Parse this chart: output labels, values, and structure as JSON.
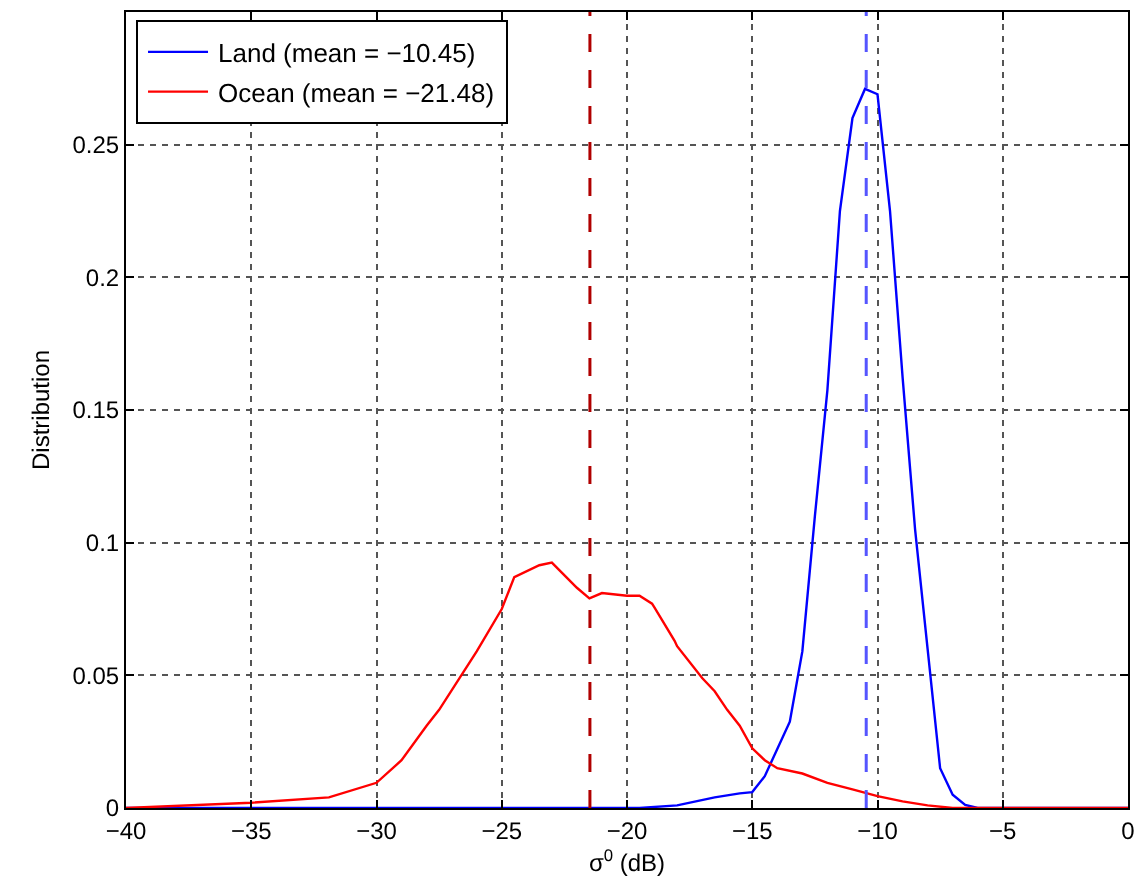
{
  "chart_data": {
    "type": "line",
    "xlabel": "σ$^{0}$ (dB)",
    "ylabel": "Distribution",
    "series": [
      {
        "name": "Land (mean = −10.45)",
        "color": "#0000ff",
        "x": [
          -40,
          -19.5,
          -18,
          -16.5,
          -15.5,
          -15,
          -14.5,
          -13.5,
          -13,
          -12.5,
          -12,
          -11.5,
          -11,
          -10.5,
          -10,
          -9.5,
          -9,
          -8.5,
          -8,
          -7.5,
          -7,
          -6.5,
          -6,
          0
        ],
        "values": [
          0,
          0,
          0.001,
          0.004,
          0.0055,
          0.006,
          0.012,
          0.0325,
          0.059,
          0.11,
          0.1575,
          0.225,
          0.26,
          0.271,
          0.269,
          0.225,
          0.1625,
          0.105,
          0.06,
          0.015,
          0.005,
          0.0012,
          0,
          0
        ]
      },
      {
        "name": "Ocean (mean = −21.48)",
        "color": "#ff0000",
        "x": [
          -40,
          -35,
          -31.9,
          -30,
          -29,
          -28,
          -27.5,
          -26,
          -25,
          -24.5,
          -23.5,
          -23,
          -22,
          -21.5,
          -21,
          -20,
          -19.5,
          -19,
          -18.9,
          -18.1,
          -18,
          -17,
          -16.5,
          -16,
          -15.5,
          -15,
          -14.5,
          -14,
          -13,
          -12,
          -11,
          -10,
          -9,
          -8,
          -7,
          0
        ],
        "values": [
          0,
          0.002,
          0.004,
          0.0095,
          0.018,
          0.031,
          0.037,
          0.059,
          0.075,
          0.087,
          0.0915,
          0.0925,
          0.083,
          0.079,
          0.081,
          0.08,
          0.08,
          0.077,
          0.0755,
          0.063,
          0.061,
          0.049,
          0.044,
          0.037,
          0.031,
          0.0225,
          0.018,
          0.015,
          0.013,
          0.0095,
          0.007,
          0.0045,
          0.0025,
          0.001,
          0,
          0
        ]
      }
    ],
    "ref_lines": [
      {
        "axis": "x",
        "value": -10.45,
        "color": "#5555ff",
        "line_style": "dashed"
      },
      {
        "axis": "x",
        "value": -21.48,
        "color": "#b00000",
        "line_style": "dashed"
      }
    ],
    "xlim": [
      -40,
      0
    ],
    "xticks": [
      {
        "value": -40,
        "label": "−40"
      },
      {
        "value": -35,
        "label": "−35"
      },
      {
        "value": -30,
        "label": "−30"
      },
      {
        "value": -25,
        "label": "−25"
      },
      {
        "value": -20,
        "label": "−20"
      },
      {
        "value": -15,
        "label": "−15"
      },
      {
        "value": -10,
        "label": "−10"
      },
      {
        "value": -5,
        "label": "−5"
      },
      0
    ],
    "ylim": [
      0,
      0.3
    ],
    "yticks": [
      0,
      0.05,
      0.1,
      0.15,
      0.2,
      0.25
    ],
    "grid": true,
    "legend": "top left",
    "line_style": "solid",
    "marker": "none"
  }
}
